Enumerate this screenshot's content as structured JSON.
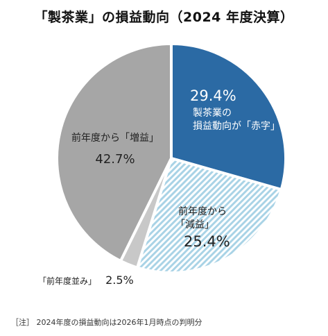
{
  "title": "「製茶業」の損益動向（2024 年度決算）",
  "chart_data": {
    "type": "pie",
    "slices": [
      {
        "label_line1": "製茶業の",
        "label_line2": "損益動向が「赤字」",
        "value": 29.4,
        "value_text": "29.4%",
        "color": "#2b6aa4",
        "pattern": "solid"
      },
      {
        "label_line1": "前年度から",
        "label_line2": "「減益」",
        "value": 25.4,
        "value_text": "25.4%",
        "color": "#a9d3e6",
        "pattern": "hatched"
      },
      {
        "label_line1": "「前年度並み」",
        "label_line2": "",
        "value": 2.5,
        "value_text": "2.5%",
        "color": "#c8c8c8",
        "pattern": "solid"
      },
      {
        "label_line1": "前年度から「増益」",
        "label_line2": "",
        "value": 42.7,
        "value_text": "42.7%",
        "color": "#a6a6a6",
        "pattern": "solid"
      }
    ]
  },
  "note": "［注］ 2024年度の損益動向は2026年1月時点の判明分"
}
